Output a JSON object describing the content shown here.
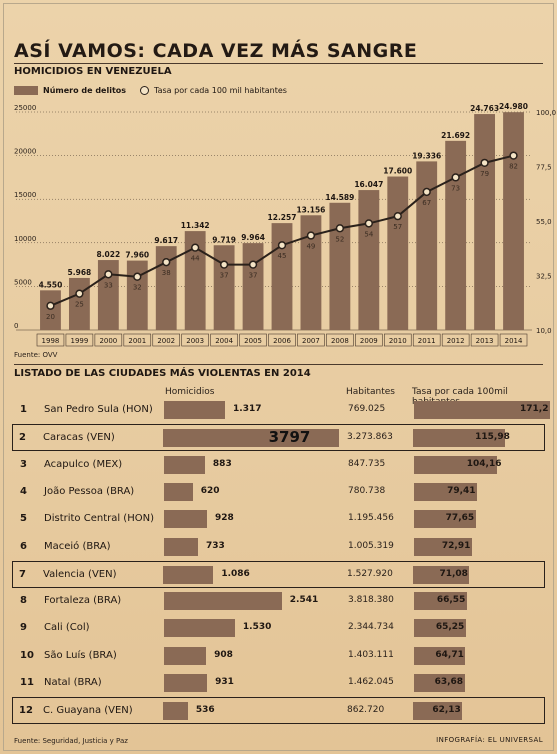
{
  "header": {
    "title": "ASÍ VAMOS: CADA VEZ MÁS SANGRE",
    "subtitle": "HOMICIDIOS EN VENEZUELA"
  },
  "legend": {
    "bars": "Número de delitos",
    "line": "Tasa por cada 100 mil habitantes"
  },
  "chart_data": {
    "type": "bar",
    "categories": [
      "1998",
      "1999",
      "2000",
      "2001",
      "2002",
      "2003",
      "2004",
      "2005",
      "2006",
      "2007",
      "2008",
      "2009",
      "2010",
      "2011",
      "2012",
      "2013",
      "2014"
    ],
    "bar_labels": [
      "4.550",
      "5.968",
      "8.022",
      "7.960",
      "9.617",
      "11.342",
      "9.719",
      "9.964",
      "12.257",
      "13.156",
      "14.589",
      "16.047",
      "17.600",
      "19.336",
      "21.692",
      "24.763",
      "24.980"
    ],
    "values": [
      4550,
      5968,
      8022,
      7960,
      9617,
      11342,
      9719,
      9964,
      12257,
      13156,
      14589,
      16047,
      17600,
      19336,
      21692,
      24763,
      24980
    ],
    "rate_series": [
      20,
      25,
      33,
      32,
      38,
      44,
      37,
      37,
      45,
      49,
      52,
      54,
      57,
      67,
      73,
      79,
      82
    ],
    "ylim": [
      0,
      25000
    ],
    "yticks": [
      "0",
      "5000",
      "10000",
      "15000",
      "20000",
      "25000"
    ],
    "ylim_right": [
      10,
      100
    ],
    "yticks_right": [
      "10,0",
      "32,5",
      "55,0",
      "77,5",
      "100,0"
    ],
    "bar_color": "#8a6a55",
    "line_color": "#2a211b"
  },
  "source_chart": "Fuente: OVV",
  "cities": {
    "title": "LISTADO DE LAS CIUDADES MÁS VIOLENTAS EN 2014",
    "col_homicidios": "Homicidios",
    "col_habitantes": "Habitantes",
    "col_tasa": "Tasa por cada 100mil habitantes",
    "rows": [
      {
        "rank": "1",
        "city": "San Pedro Sula (HON)",
        "hom": "1.317",
        "hom_val": 1317,
        "pop": "769.025",
        "tasa": "171,2",
        "tasa_val": 171.2
      },
      {
        "rank": "2",
        "city": "Caracas (VEN)",
        "hom": "3797",
        "hom_val": 3797,
        "pop": "3.273.863",
        "tasa": "115,98",
        "tasa_val": 115.98
      },
      {
        "rank": "3",
        "city": "Acapulco (MEX)",
        "hom": "883",
        "hom_val": 883,
        "pop": "847.735",
        "tasa": "104,16",
        "tasa_val": 104.16
      },
      {
        "rank": "4",
        "city": "João Pessoa (BRA)",
        "hom": "620",
        "hom_val": 620,
        "pop": "780.738",
        "tasa": "79,41",
        "tasa_val": 79.41
      },
      {
        "rank": "5",
        "city": "Distrito Central (HON)",
        "hom": "928",
        "hom_val": 928,
        "pop": "1.195.456",
        "tasa": "77,65",
        "tasa_val": 77.65
      },
      {
        "rank": "6",
        "city": "Maceió (BRA)",
        "hom": "733",
        "hom_val": 733,
        "pop": "1.005.319",
        "tasa": "72,91",
        "tasa_val": 72.91
      },
      {
        "rank": "7",
        "city": "Valencia (VEN)",
        "hom": "1.086",
        "hom_val": 1086,
        "pop": "1.527.920",
        "tasa": "71,08",
        "tasa_val": 71.08
      },
      {
        "rank": "8",
        "city": "Fortaleza (BRA)",
        "hom": "2.541",
        "hom_val": 2541,
        "pop": "3.818.380",
        "tasa": "66,55",
        "tasa_val": 66.55
      },
      {
        "rank": "9",
        "city": "Cali (Col)",
        "hom": "1.530",
        "hom_val": 1530,
        "pop": "2.344.734",
        "tasa": "65,25",
        "tasa_val": 65.25
      },
      {
        "rank": "10",
        "city": "São Luís (BRA)",
        "hom": "908",
        "hom_val": 908,
        "pop": "1.403.111",
        "tasa": "64,71",
        "tasa_val": 64.71
      },
      {
        "rank": "11",
        "city": "Natal (BRA)",
        "hom": "931",
        "hom_val": 931,
        "pop": "1.462.045",
        "tasa": "63,68",
        "tasa_val": 63.68
      },
      {
        "rank": "12",
        "city": "C. Guayana (VEN)",
        "hom": "536",
        "hom_val": 536,
        "pop": "862.720",
        "tasa": "62,13",
        "tasa_val": 62.13
      }
    ]
  },
  "source_table": "Fuente: Seguridad, Justicia y Paz",
  "credit": "INFOGRAFÍA: EL UNIVERSAL"
}
